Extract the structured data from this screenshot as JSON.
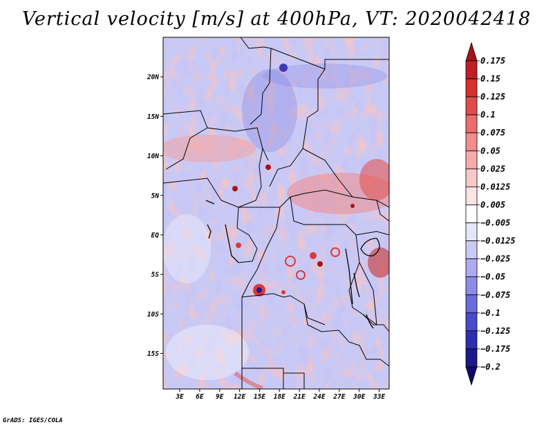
{
  "chart_data": {
    "type": "heatmap",
    "title": "Vertical velocity [m/s] at 400hPa, VT: 2020042418",
    "xlabel": "",
    "ylabel": "",
    "x_ticks": [
      "3E",
      "6E",
      "9E",
      "12E",
      "15E",
      "18E",
      "21E",
      "24E",
      "27E",
      "30E",
      "33E"
    ],
    "x_tick_values": [
      3,
      6,
      9,
      12,
      15,
      18,
      21,
      24,
      27,
      30,
      33
    ],
    "y_ticks": [
      "20N",
      "15N",
      "10N",
      "5N",
      "EQ",
      "5S",
      "10S",
      "15S"
    ],
    "y_tick_values": [
      20,
      15,
      10,
      5,
      0,
      -5,
      -10,
      -15
    ],
    "xlim": [
      0.5,
      34.5
    ],
    "ylim": [
      -19.5,
      25
    ],
    "colorbar": {
      "levels": [
        "0.175",
        "0.15",
        "0.125",
        "0.1",
        "0.075",
        "0.05",
        "0.025",
        "0.0125",
        "0.005",
        "−0.005",
        "−0.0125",
        "−0.025",
        "−0.05",
        "−0.075",
        "−0.1",
        "−0.125",
        "−0.175",
        "−0.2"
      ],
      "colors": [
        "#a51419",
        "#bf1f25",
        "#d62f2f",
        "#e34b4b",
        "#ec6b6b",
        "#f38c8c",
        "#f7aaaa",
        "#fbc8c8",
        "#fde3e3",
        "#ffffff",
        "#e6e6fb",
        "#cacaf6",
        "#ababf0",
        "#8c8ce8",
        "#6b6bdc",
        "#4a4acc",
        "#2e2eb0",
        "#1a1a8c",
        "#0c0c66"
      ]
    }
  },
  "credit": "GrADS: IGES/COLA"
}
